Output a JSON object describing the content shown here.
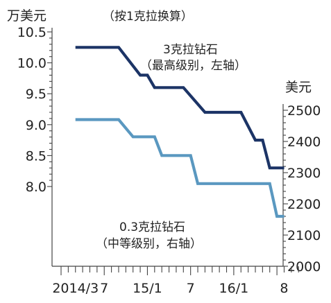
{
  "chart_data": {
    "type": "line",
    "left_unit": "万美元",
    "right_unit": "美元",
    "note": "（按1克拉换算）",
    "x_tick_labels": [
      "2014/3",
      "7",
      "15/1",
      "7",
      "16/1",
      "8"
    ],
    "left_ticks": [
      "10.5",
      "10.0",
      "9.5",
      "9.0",
      "8.5",
      "8.0"
    ],
    "right_ticks": [
      "2500",
      "2400",
      "2300",
      "2200",
      "2100",
      "2000"
    ],
    "ylim_left": [
      8.0,
      10.5
    ],
    "ylim_right": [
      2000,
      2500
    ],
    "xlim_months": [
      "2014-01",
      "2016-10"
    ],
    "series": [
      {
        "name_line1": "3克拉钻石",
        "name_line2": "（最高级别，左轴）",
        "axis": "left",
        "color": "#1c3466",
        "points": [
          [
            "2014-03",
            10.25
          ],
          [
            "2014-09",
            10.25
          ],
          [
            "2014-12",
            9.8
          ],
          [
            "2015-01",
            9.8
          ],
          [
            "2015-02",
            9.6
          ],
          [
            "2015-06",
            9.6
          ],
          [
            "2015-09",
            9.2
          ],
          [
            "2016-02",
            9.2
          ],
          [
            "2016-04",
            8.75
          ],
          [
            "2016-05",
            8.75
          ],
          [
            "2016-06",
            8.3
          ],
          [
            "2016-08",
            8.3
          ]
        ]
      },
      {
        "name_line1": "0.3克拉钻石",
        "name_line2": "（中等级别，右轴）",
        "axis": "right",
        "color": "#5a98c0",
        "points": [
          [
            "2014-03",
            2470
          ],
          [
            "2014-09",
            2470
          ],
          [
            "2014-11",
            2415
          ],
          [
            "2015-02",
            2415
          ],
          [
            "2015-03",
            2355
          ],
          [
            "2015-07",
            2355
          ],
          [
            "2015-08",
            2265
          ],
          [
            "2016-06",
            2265
          ],
          [
            "2016-07",
            2160
          ],
          [
            "2016-08",
            2160
          ]
        ]
      }
    ]
  }
}
